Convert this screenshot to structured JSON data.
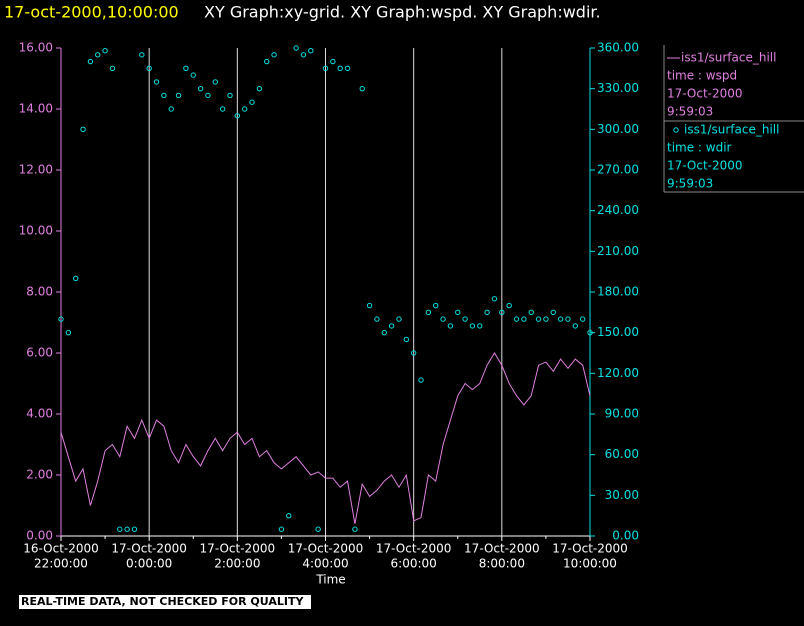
{
  "chart_data": {
    "type": "line-scatter",
    "timestamp": "17-oct-2000,10:00:00",
    "title": "XY Graph:xy-grid.  XY Graph:wspd.  XY Graph:wdir.",
    "x_label": "Time",
    "footnote": "REAL-TIME DATA, NOT CHECKED FOR QUALITY",
    "grid": true,
    "x": [
      "2000-10-16T22:00",
      "2000-10-16T22:10",
      "2000-10-16T22:20",
      "2000-10-16T22:30",
      "2000-10-16T22:40",
      "2000-10-16T22:50",
      "2000-10-16T23:00",
      "2000-10-16T23:10",
      "2000-10-16T23:20",
      "2000-10-16T23:30",
      "2000-10-16T23:40",
      "2000-10-16T23:50",
      "2000-10-17T00:00",
      "2000-10-17T00:10",
      "2000-10-17T00:20",
      "2000-10-17T00:30",
      "2000-10-17T00:40",
      "2000-10-17T00:50",
      "2000-10-17T01:00",
      "2000-10-17T01:10",
      "2000-10-17T01:20",
      "2000-10-17T01:30",
      "2000-10-17T01:40",
      "2000-10-17T01:50",
      "2000-10-17T02:00",
      "2000-10-17T02:10",
      "2000-10-17T02:20",
      "2000-10-17T02:30",
      "2000-10-17T02:40",
      "2000-10-17T02:50",
      "2000-10-17T03:00",
      "2000-10-17T03:10",
      "2000-10-17T03:20",
      "2000-10-17T03:30",
      "2000-10-17T03:40",
      "2000-10-17T03:50",
      "2000-10-17T04:00",
      "2000-10-17T04:10",
      "2000-10-17T04:20",
      "2000-10-17T04:30",
      "2000-10-17T04:40",
      "2000-10-17T04:50",
      "2000-10-17T05:00",
      "2000-10-17T05:10",
      "2000-10-17T05:20",
      "2000-10-17T05:30",
      "2000-10-17T05:40",
      "2000-10-17T05:50",
      "2000-10-17T06:00",
      "2000-10-17T06:10",
      "2000-10-17T06:20",
      "2000-10-17T06:30",
      "2000-10-17T06:40",
      "2000-10-17T06:50",
      "2000-10-17T07:00",
      "2000-10-17T07:10",
      "2000-10-17T07:20",
      "2000-10-17T07:30",
      "2000-10-17T07:40",
      "2000-10-17T07:50",
      "2000-10-17T08:00",
      "2000-10-17T08:10",
      "2000-10-17T08:20",
      "2000-10-17T08:30",
      "2000-10-17T08:40",
      "2000-10-17T08:50",
      "2000-10-17T09:00",
      "2000-10-17T09:10",
      "2000-10-17T09:20",
      "2000-10-17T09:30",
      "2000-10-17T09:40",
      "2000-10-17T09:50",
      "2000-10-17T10:00"
    ],
    "xlim": [
      "2000-10-16T22:00",
      "2000-10-17T10:00"
    ],
    "xticks": [
      {
        "value": "2000-10-16T22:00",
        "label": [
          "16-Oct-2000",
          "22:00:00"
        ]
      },
      {
        "value": "2000-10-17T00:00",
        "label": [
          "17-Oct-2000",
          "0:00:00"
        ]
      },
      {
        "value": "2000-10-17T02:00",
        "label": [
          "17-Oct-2000",
          "2:00:00"
        ]
      },
      {
        "value": "2000-10-17T04:00",
        "label": [
          "17-Oct-2000",
          "4:00:00"
        ]
      },
      {
        "value": "2000-10-17T06:00",
        "label": [
          "17-Oct-2000",
          "6:00:00"
        ]
      },
      {
        "value": "2000-10-17T08:00",
        "label": [
          "17-Oct-2000",
          "8:00:00"
        ]
      },
      {
        "value": "2000-10-17T10:00",
        "label": [
          "17-Oct-2000",
          "10:00:00"
        ]
      }
    ],
    "ylim": [
      0,
      16
    ],
    "yticks": [
      {
        "value": 0,
        "label": "0.00"
      },
      {
        "value": 2,
        "label": "2.00"
      },
      {
        "value": 4,
        "label": "4.00"
      },
      {
        "value": 6,
        "label": "6.00"
      },
      {
        "value": 8,
        "label": "8.00"
      },
      {
        "value": 10,
        "label": "10.00"
      },
      {
        "value": 12,
        "label": "12.00"
      },
      {
        "value": 14,
        "label": "14.00"
      },
      {
        "value": 16,
        "label": "16.00"
      }
    ],
    "y_color": "#e080e0",
    "y2lim": [
      0,
      360
    ],
    "y2ticks": [
      {
        "value": 0,
        "label": "0.00"
      },
      {
        "value": 30,
        "label": "30.00"
      },
      {
        "value": 60,
        "label": "60.00"
      },
      {
        "value": 90,
        "label": "90.00"
      },
      {
        "value": 120,
        "label": "120.00"
      },
      {
        "value": 150,
        "label": "150.00"
      },
      {
        "value": 180,
        "label": "180.00"
      },
      {
        "value": 210,
        "label": "210.00"
      },
      {
        "value": 240,
        "label": "240.00"
      },
      {
        "value": 270,
        "label": "270.00"
      },
      {
        "value": 300,
        "label": "300.00"
      },
      {
        "value": 330,
        "label": "330.00"
      },
      {
        "value": 360,
        "label": "360.00"
      }
    ],
    "y2_color": "#00e0e0",
    "series": [
      {
        "name": "iss1/surface_hill",
        "legend_text": [
          "time : wspd",
          "17-Oct-2000",
          "9:59:03"
        ],
        "type": "line",
        "color": "#e080e0",
        "values": [
          3.4,
          2.6,
          1.8,
          2.2,
          1.0,
          1.8,
          2.8,
          3.0,
          2.6,
          3.6,
          3.2,
          3.8,
          3.2,
          3.8,
          3.6,
          2.8,
          2.4,
          3.0,
          2.6,
          2.3,
          2.8,
          3.2,
          2.8,
          3.2,
          3.4,
          3.0,
          3.2,
          2.6,
          2.8,
          2.4,
          2.2,
          2.4,
          2.6,
          2.3,
          2.0,
          2.1,
          1.9,
          1.9,
          1.6,
          1.8,
          0.4,
          1.7,
          1.3,
          1.5,
          1.8,
          2.0,
          1.6,
          2.0,
          0.5,
          0.6,
          2.0,
          1.8,
          3.0,
          3.8,
          4.6,
          5.0,
          4.8,
          5.0,
          5.6,
          6.0,
          5.6,
          5.0,
          4.6,
          4.3,
          4.6,
          5.6,
          5.7,
          5.4,
          5.8,
          5.5,
          5.8,
          5.6,
          4.6
        ]
      },
      {
        "name": "iss1/surface_hill",
        "legend_text": [
          "time : wdir",
          "17-Oct-2000",
          "9:59:03"
        ],
        "type": "scatter",
        "axis": "y2",
        "color": "#00e0e0",
        "values": [
          160,
          150,
          190,
          300,
          350,
          355,
          358,
          345,
          5,
          5,
          5,
          355,
          345,
          335,
          325,
          315,
          325,
          345,
          340,
          330,
          325,
          335,
          315,
          325,
          310,
          315,
          320,
          330,
          350,
          355,
          5,
          15,
          360,
          355,
          358,
          5,
          345,
          350,
          345,
          345,
          5,
          330,
          170,
          160,
          150,
          155,
          160,
          145,
          135,
          115,
          165,
          170,
          160,
          155,
          165,
          160,
          155,
          155,
          165,
          175,
          165,
          170,
          160,
          160,
          165,
          160,
          160,
          165,
          160,
          160,
          155,
          160,
          150
        ]
      }
    ]
  }
}
